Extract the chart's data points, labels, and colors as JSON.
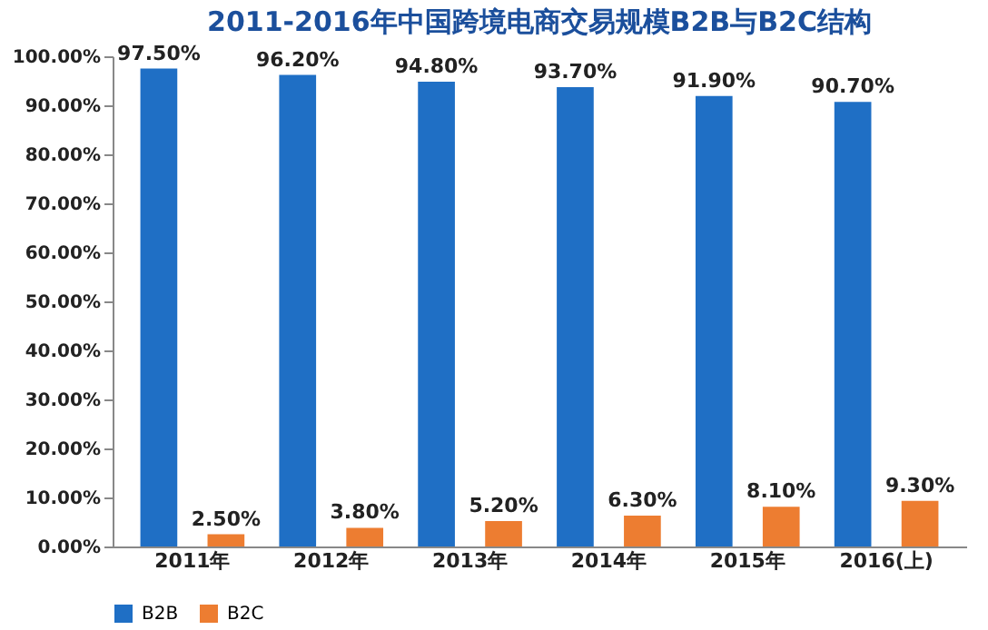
{
  "chart_data": {
    "type": "bar",
    "title": "2011-2016年中国跨境电商交易规模B2B与B2C结构",
    "categories": [
      "2011年",
      "2012年",
      "2013年",
      "2014年",
      "2015年",
      "2016(上)"
    ],
    "series": [
      {
        "name": "B2B",
        "color": "#1f6fc5",
        "values": [
          97.5,
          96.2,
          94.8,
          93.7,
          91.9,
          90.7
        ],
        "value_labels": [
          "97.50%",
          "96.20%",
          "94.80%",
          "93.70%",
          "91.90%",
          "90.70%"
        ]
      },
      {
        "name": "B2C",
        "color": "#ed7d31",
        "values": [
          2.5,
          3.8,
          5.2,
          6.3,
          8.1,
          9.3
        ],
        "value_labels": [
          "2.50%",
          "3.80%",
          "5.20%",
          "6.30%",
          "8.10%",
          "9.30%"
        ]
      }
    ],
    "ylim": [
      0,
      100
    ],
    "yticks": [
      {
        "value": 0,
        "label": "0.00%"
      },
      {
        "value": 10,
        "label": "10.00%"
      },
      {
        "value": 20,
        "label": "20.00%"
      },
      {
        "value": 30,
        "label": "30.00%"
      },
      {
        "value": 40,
        "label": "40.00%"
      },
      {
        "value": 50,
        "label": "50.00%"
      },
      {
        "value": 60,
        "label": "60.00%"
      },
      {
        "value": 70,
        "label": "70.00%"
      },
      {
        "value": 80,
        "label": "80.00%"
      },
      {
        "value": 90,
        "label": "90.00%"
      },
      {
        "value": 100,
        "label": "100.00%"
      }
    ],
    "legend": "bottom",
    "grid": false
  }
}
